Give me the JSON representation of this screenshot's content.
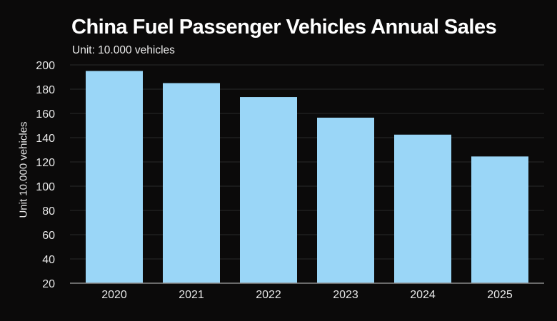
{
  "chart_data": {
    "type": "bar",
    "title": "China Fuel Passenger Vehicles Annual Sales",
    "subtitle": "Unit: 10.000 vehicles",
    "xlabel": "",
    "ylabel": "Unit 10.000 vehicles",
    "categories": [
      "2020",
      "2021",
      "2022",
      "2023",
      "2024",
      "2025"
    ],
    "values": [
      195,
      185,
      173.5,
      156.5,
      142.5,
      124.5
    ],
    "ylim": [
      20,
      200
    ],
    "yticks": [
      20,
      40,
      60,
      80,
      100,
      120,
      140,
      160,
      180,
      200
    ],
    "grid": true,
    "bar_color": "#9ad6f7",
    "background": "#0b0a0a"
  }
}
